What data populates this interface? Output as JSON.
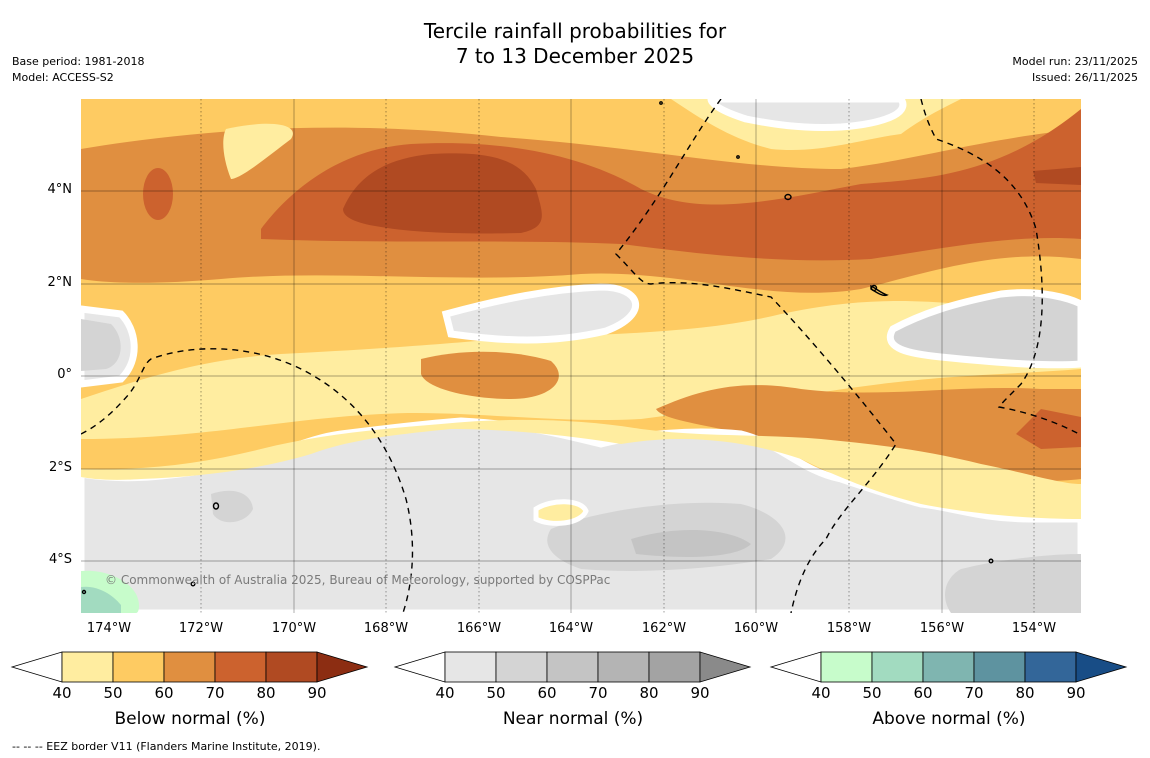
{
  "header": {
    "title_line1": "Tercile rainfall probabilities for",
    "title_line2": "7 to 13 December 2025",
    "base_period": "Base period: 1981-2018",
    "model": "Model: ACCESS-S2",
    "model_run": "Model run: 23/11/2025",
    "issued": "Issued: 26/11/2025"
  },
  "map": {
    "longitude_labels": [
      "174°W",
      "172°W",
      "170°W",
      "168°W",
      "166°W",
      "164°W",
      "162°W",
      "160°W",
      "158°W",
      "156°W",
      "154°W"
    ],
    "latitude_labels": [
      "4°N",
      "2°N",
      "0°",
      "2°S",
      "4°S"
    ],
    "copyright": "© Commonwealth of Australia 2025, Bureau of Meteorology, supported by COSPPac",
    "colors": {
      "below": [
        "#ffeda0",
        "#fecb62",
        "#e08f40",
        "#cc622e",
        "#b04a22",
        "#8c2d12"
      ],
      "near": [
        "#e6e6e6",
        "#d4d4d4",
        "#c4c4c4",
        "#b4b4b4",
        "#a3a3a3",
        "#8a8a8a"
      ],
      "above": [
        "#c7fccb",
        "#a2dbc0",
        "#7fb5b0",
        "#5e93a0",
        "#336699",
        "#184d86"
      ]
    }
  },
  "colorbars": {
    "ticks": [
      "40",
      "50",
      "60",
      "70",
      "80",
      "90"
    ],
    "below_title": "Below normal (%)",
    "near_title": "Near normal (%)",
    "above_title": "Above normal (%)"
  },
  "footnote": "--  --  -- EEZ border V11 (Flanders Marine Institute, 2019)."
}
